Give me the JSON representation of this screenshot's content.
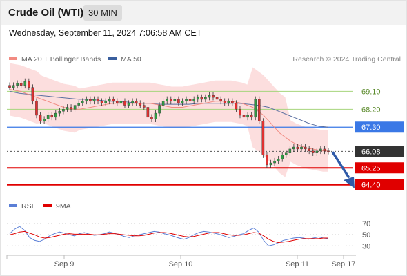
{
  "header": {
    "title": "Crude Oil (WTI)",
    "timeframe": "30 MIN"
  },
  "datetime": "Wednesday, September 11, 2024 7:06:58 AM CET",
  "legend": {
    "ma20": "MA 20 + Bollinger Bands",
    "ma50": "MA 50",
    "ma20_color": "#f28b82",
    "ma50_color": "#3a5f9e"
  },
  "credit": "Research © 2024 Trading Central",
  "rsi_legend": {
    "rsi": "RSI",
    "ma9": "9MA",
    "rsi_color": "#5b7fd6",
    "ma9_color": "#e00000"
  },
  "colors": {
    "up": "#2f9e44",
    "down": "#e03131",
    "pivot_red": "#e00000",
    "pivot_blue": "#3a78e6",
    "pivot_green": "#a6d57c",
    "bb_fill": "#fbd3d3",
    "arrow": "#2f5aa8"
  },
  "chart_data": {
    "type": "candlestick",
    "x_labels": [
      "Sep 9",
      "Sep 10",
      "Sep 11",
      "Sep 17"
    ],
    "price_levels": [
      {
        "value": 69.1,
        "label": "69.10",
        "style": "green"
      },
      {
        "value": 68.2,
        "label": "68.20",
        "style": "green"
      },
      {
        "value": 67.3,
        "label": "67.30",
        "style": "blue"
      },
      {
        "value": 66.08,
        "label": "66.08",
        "style": "current"
      },
      {
        "value": 65.25,
        "label": "65.25",
        "style": "red"
      },
      {
        "value": 64.4,
        "label": "64.40",
        "style": "red"
      }
    ],
    "close": [
      69.3,
      69.4,
      69.5,
      69.4,
      69.6,
      69.3,
      68.6,
      67.9,
      67.6,
      67.7,
      67.9,
      67.8,
      68.0,
      68.1,
      68.2,
      68.3,
      68.2,
      68.4,
      68.5,
      68.6,
      68.7,
      68.6,
      68.7,
      68.6,
      68.5,
      68.6,
      68.7,
      68.6,
      68.5,
      68.6,
      68.4,
      68.5,
      68.6,
      68.5,
      68.4,
      68.3,
      67.8,
      67.7,
      68.0,
      68.4,
      68.6,
      68.7,
      68.6,
      68.7,
      68.5,
      68.6,
      68.7,
      68.6,
      68.7,
      68.8,
      68.7,
      68.8,
      68.9,
      68.8,
      68.7,
      68.6,
      68.5,
      68.6,
      68.5,
      68.2,
      67.9,
      67.8,
      67.9,
      67.8,
      68.7,
      67.6,
      65.9,
      65.4,
      65.5,
      65.6,
      65.7,
      65.9,
      66.0,
      66.2,
      66.3,
      66.2,
      66.3,
      66.2,
      66.1,
      66.0,
      66.1,
      66.2,
      66.1,
      66.08
    ],
    "ma20": [
      69.2,
      69.15,
      69.1,
      69.0,
      68.9,
      68.8,
      68.7,
      68.6,
      68.5,
      68.4,
      68.3,
      68.25,
      68.2,
      68.2,
      68.25,
      68.3,
      68.35,
      68.4,
      68.45,
      68.5,
      68.5,
      68.5,
      68.5,
      68.5,
      68.5,
      68.5,
      68.5,
      68.45,
      68.4,
      68.35,
      68.3,
      68.3,
      68.3,
      68.35,
      68.4,
      68.45,
      68.5,
      68.55,
      68.6,
      68.6,
      68.6,
      68.6,
      68.55,
      68.5,
      68.4,
      68.3,
      68.1,
      67.9,
      67.6,
      67.3,
      67.0,
      66.8,
      66.6,
      66.45,
      66.35,
      66.25,
      66.2,
      66.15,
      66.1,
      66.1
    ],
    "ma50": [
      69.1,
      69.0,
      68.95,
      68.9,
      68.85,
      68.8,
      68.75,
      68.7,
      68.7,
      68.65,
      68.6,
      68.6,
      68.55,
      68.5,
      68.5,
      68.45,
      68.45,
      68.45,
      68.45,
      68.5,
      68.5,
      68.5,
      68.5,
      68.5,
      68.45,
      68.4,
      68.3,
      68.1,
      67.9,
      67.7,
      67.5,
      67.35,
      67.3
    ],
    "rsi_axis": [
      70,
      50,
      30
    ],
    "rsi": [
      52,
      60,
      65,
      58,
      45,
      40,
      38,
      42,
      48,
      52,
      55,
      53,
      50,
      48,
      52,
      54,
      51,
      49,
      50,
      52,
      55,
      53,
      50,
      47,
      45,
      48,
      50,
      52,
      54,
      56,
      55,
      52,
      50,
      47,
      44,
      42,
      45,
      50,
      54,
      56,
      55,
      53,
      51,
      48,
      45,
      47,
      50,
      52,
      58,
      62,
      55,
      40,
      30,
      32,
      36,
      40,
      42,
      44,
      45,
      44,
      42,
      44,
      46,
      44,
      43
    ],
    "rsi_ma9": [
      50,
      52,
      55,
      56,
      53,
      50,
      46,
      44,
      45,
      47,
      49,
      51,
      52,
      51,
      51,
      51,
      51,
      50,
      50,
      51,
      52,
      52,
      51,
      50,
      49,
      48,
      48,
      49,
      51,
      53,
      54,
      54,
      53,
      51,
      49,
      47,
      46,
      47,
      49,
      51,
      53,
      54,
      54,
      52,
      50,
      49,
      49,
      50,
      52,
      54,
      53,
      48,
      42,
      38,
      36,
      37,
      38,
      40,
      42,
      43,
      43,
      43,
      43,
      44,
      44
    ]
  }
}
